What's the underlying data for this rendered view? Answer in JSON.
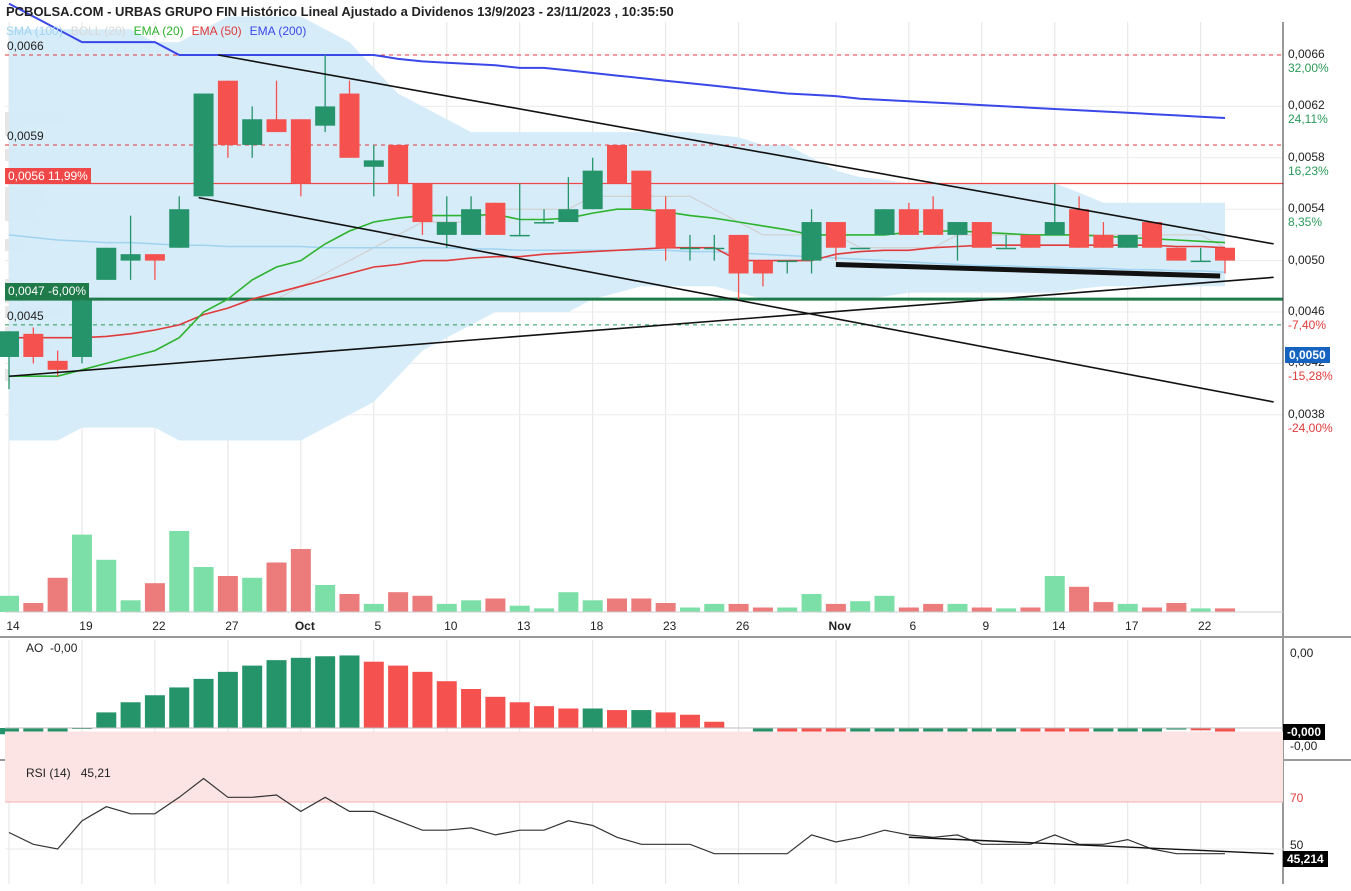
{
  "header": {
    "title": "PCBOLSA.COM - URBAS GRUPO FIN Histórico Lineal Ajustado a Dividenos 13/9/2023 - 23/11/2023 , 10:35:50"
  },
  "legend": [
    {
      "label": "SMA (100)",
      "color": "#9fd3f0"
    },
    {
      "label": "BOLL (20)",
      "color": "#d8d8d8"
    },
    {
      "label": "EMA (20)",
      "color": "#2db32d"
    },
    {
      "label": "EMA (50)",
      "color": "#e03a3a"
    },
    {
      "label": "EMA (200)",
      "color": "#3a48e8"
    }
  ],
  "colors": {
    "up": "#26946a",
    "down": "#f5524f",
    "up_vol": "#7ddfa8",
    "down_vol": "#ec7b7b",
    "band": "#d5ebf9"
  },
  "price_levels": [
    {
      "label": "0,0066",
      "value": 0.0066,
      "color": "#e03a3a",
      "style": "dashed"
    },
    {
      "label": "0,0059",
      "value": 0.0059,
      "color": "#e03a3a",
      "style": "dashed"
    },
    {
      "label": "0,0056",
      "pct": "11,99%",
      "value": 0.0056,
      "color": "#f04848",
      "style": "solid"
    },
    {
      "label": "0,0047",
      "pct": "-6,00%",
      "value": 0.0047,
      "color": "#1f7a4a",
      "style": "solid"
    },
    {
      "label": "0,0045",
      "value": 0.0045,
      "color": "#1f9a5a",
      "style": "dashed"
    }
  ],
  "y_axis": {
    "ticks": [
      "0,0066",
      "0,0062",
      "0,0058",
      "0,0054",
      "0,0050",
      "0,0046",
      "0,0042",
      "0,0038"
    ],
    "pct_labels": [
      {
        "text": "32,00%",
        "color": "#2a9a5a"
      },
      {
        "text": "24,11%",
        "color": "#2a9a5a"
      },
      {
        "text": "16,23%",
        "color": "#2a9a5a"
      },
      {
        "text": "8,35%",
        "color": "#2a9a5a"
      },
      {
        "text": "-7,40%",
        "color": "#e03a3a"
      },
      {
        "text": "-15,28%",
        "color": "#e03a3a"
      },
      {
        "text": "-24,00%",
        "color": "#e03a3a"
      }
    ]
  },
  "last_price": "0,0050",
  "x_axis": {
    "labels": [
      {
        "text": "14",
        "i": 0
      },
      {
        "text": "19",
        "i": 3
      },
      {
        "text": "22",
        "i": 6
      },
      {
        "text": "27",
        "i": 9
      },
      {
        "text": "Oct",
        "i": 12,
        "month": true
      },
      {
        "text": "5",
        "i": 15
      },
      {
        "text": "10",
        "i": 18
      },
      {
        "text": "13",
        "i": 21
      },
      {
        "text": "18",
        "i": 24
      },
      {
        "text": "23",
        "i": 27
      },
      {
        "text": "26",
        "i": 30
      },
      {
        "text": "Nov",
        "i": 34,
        "month": true
      },
      {
        "text": "6",
        "i": 37
      },
      {
        "text": "9",
        "i": 40
      },
      {
        "text": "14",
        "i": 43
      },
      {
        "text": "17",
        "i": 46
      },
      {
        "text": "22",
        "i": 49
      }
    ]
  },
  "ao": {
    "label": "AO",
    "value": "-0,00",
    "ticks": [
      "0,00",
      "-0,00"
    ],
    "badge": "-0,000"
  },
  "rsi": {
    "label": "RSI (14)",
    "value": "45,21",
    "ticks": [
      "70",
      "50"
    ],
    "badge": "45,214"
  },
  "chart_data": {
    "type": "candlestick",
    "period": "13/9/2023 - 23/11/2023",
    "candles": [
      {
        "o": 0.00425,
        "h": 0.00445,
        "l": 0.004,
        "c": 0.00445
      },
      {
        "o": 0.00443,
        "h": 0.00448,
        "l": 0.0042,
        "c": 0.00425
      },
      {
        "o": 0.00422,
        "h": 0.0043,
        "l": 0.0041,
        "c": 0.00415
      },
      {
        "o": 0.00425,
        "h": 0.0047,
        "l": 0.0042,
        "c": 0.00469
      },
      {
        "o": 0.00485,
        "h": 0.0051,
        "l": 0.00485,
        "c": 0.0051
      },
      {
        "o": 0.005,
        "h": 0.00535,
        "l": 0.00485,
        "c": 0.00505
      },
      {
        "o": 0.00505,
        "h": 0.00505,
        "l": 0.00485,
        "c": 0.005
      },
      {
        "o": 0.0051,
        "h": 0.0055,
        "l": 0.0051,
        "c": 0.0054
      },
      {
        "o": 0.0055,
        "h": 0.0063,
        "l": 0.0055,
        "c": 0.0063
      },
      {
        "o": 0.0064,
        "h": 0.0064,
        "l": 0.0058,
        "c": 0.0059
      },
      {
        "o": 0.0059,
        "h": 0.0062,
        "l": 0.0058,
        "c": 0.0061
      },
      {
        "o": 0.0061,
        "h": 0.0064,
        "l": 0.006,
        "c": 0.006
      },
      {
        "o": 0.0061,
        "h": 0.0061,
        "l": 0.0055,
        "c": 0.0056
      },
      {
        "o": 0.00605,
        "h": 0.0066,
        "l": 0.006,
        "c": 0.0062
      },
      {
        "o": 0.0063,
        "h": 0.0064,
        "l": 0.0058,
        "c": 0.0058
      },
      {
        "o": 0.00573,
        "h": 0.0059,
        "l": 0.0055,
        "c": 0.00578
      },
      {
        "o": 0.0059,
        "h": 0.0059,
        "l": 0.0055,
        "c": 0.0056
      },
      {
        "o": 0.0056,
        "h": 0.0056,
        "l": 0.0052,
        "c": 0.0053
      },
      {
        "o": 0.0052,
        "h": 0.0055,
        "l": 0.0051,
        "c": 0.0053
      },
      {
        "o": 0.0052,
        "h": 0.0055,
        "l": 0.0052,
        "c": 0.0054
      },
      {
        "o": 0.00545,
        "h": 0.00545,
        "l": 0.0052,
        "c": 0.0052
      },
      {
        "o": 0.0052,
        "h": 0.0056,
        "l": 0.0052,
        "c": 0.0052
      },
      {
        "o": 0.0053,
        "h": 0.0054,
        "l": 0.0053,
        "c": 0.0053
      },
      {
        "o": 0.0053,
        "h": 0.00565,
        "l": 0.0053,
        "c": 0.0054
      },
      {
        "o": 0.0054,
        "h": 0.0058,
        "l": 0.0054,
        "c": 0.0057
      },
      {
        "o": 0.0059,
        "h": 0.0059,
        "l": 0.0056,
        "c": 0.0056
      },
      {
        "o": 0.0057,
        "h": 0.0057,
        "l": 0.0054,
        "c": 0.0054
      },
      {
        "o": 0.0054,
        "h": 0.0055,
        "l": 0.005,
        "c": 0.0051
      },
      {
        "o": 0.0051,
        "h": 0.0052,
        "l": 0.005,
        "c": 0.0051
      },
      {
        "o": 0.0051,
        "h": 0.0052,
        "l": 0.005,
        "c": 0.0051
      },
      {
        "o": 0.0052,
        "h": 0.0052,
        "l": 0.0047,
        "c": 0.0049
      },
      {
        "o": 0.005,
        "h": 0.005,
        "l": 0.0048,
        "c": 0.0049
      },
      {
        "o": 0.005,
        "h": 0.005,
        "l": 0.0049,
        "c": 0.005
      },
      {
        "o": 0.005,
        "h": 0.0054,
        "l": 0.0049,
        "c": 0.0053
      },
      {
        "o": 0.0053,
        "h": 0.0053,
        "l": 0.005,
        "c": 0.0051
      },
      {
        "o": 0.0051,
        "h": 0.0051,
        "l": 0.0051,
        "c": 0.0051
      },
      {
        "o": 0.0052,
        "h": 0.0054,
        "l": 0.0052,
        "c": 0.0054
      },
      {
        "o": 0.0054,
        "h": 0.00545,
        "l": 0.0052,
        "c": 0.0052
      },
      {
        "o": 0.0054,
        "h": 0.0055,
        "l": 0.0052,
        "c": 0.0052
      },
      {
        "o": 0.0052,
        "h": 0.0053,
        "l": 0.005,
        "c": 0.0053
      },
      {
        "o": 0.0053,
        "h": 0.0053,
        "l": 0.0051,
        "c": 0.0051
      },
      {
        "o": 0.0051,
        "h": 0.0052,
        "l": 0.0051,
        "c": 0.0051
      },
      {
        "o": 0.0052,
        "h": 0.0052,
        "l": 0.0051,
        "c": 0.0051
      },
      {
        "o": 0.0052,
        "h": 0.0056,
        "l": 0.0052,
        "c": 0.0053
      },
      {
        "o": 0.0054,
        "h": 0.0055,
        "l": 0.0051,
        "c": 0.0051
      },
      {
        "o": 0.0052,
        "h": 0.0053,
        "l": 0.0051,
        "c": 0.0051
      },
      {
        "o": 0.0051,
        "h": 0.0052,
        "l": 0.0051,
        "c": 0.0052
      },
      {
        "o": 0.0053,
        "h": 0.0053,
        "l": 0.0051,
        "c": 0.0051
      },
      {
        "o": 0.0051,
        "h": 0.0051,
        "l": 0.005,
        "c": 0.005
      },
      {
        "o": 0.005,
        "h": 0.0051,
        "l": 0.005,
        "c": 0.005
      },
      {
        "o": 0.0051,
        "h": 0.0051,
        "l": 0.0049,
        "c": 0.005
      }
    ],
    "volume": [
      0.18,
      0.1,
      0.38,
      0.86,
      0.58,
      0.13,
      0.32,
      0.9,
      0.5,
      0.4,
      0.38,
      0.55,
      0.7,
      0.3,
      0.2,
      0.09,
      0.22,
      0.18,
      0.09,
      0.13,
      0.15,
      0.07,
      0.04,
      0.22,
      0.13,
      0.15,
      0.15,
      0.1,
      0.05,
      0.09,
      0.09,
      0.05,
      0.05,
      0.2,
      0.09,
      0.12,
      0.18,
      0.05,
      0.09,
      0.09,
      0.05,
      0.04,
      0.05,
      0.4,
      0.28,
      0.11,
      0.09,
      0.05,
      0.1,
      0.04,
      0.04
    ],
    "ema20": [
      0.0041,
      0.0041,
      0.0041,
      0.00415,
      0.0042,
      0.00425,
      0.0043,
      0.0044,
      0.0046,
      0.0047,
      0.00485,
      0.00495,
      0.005,
      0.00513,
      0.00523,
      0.0053,
      0.00533,
      0.00535,
      0.00535,
      0.00535,
      0.00536,
      0.00532,
      0.00532,
      0.00533,
      0.00537,
      0.0054,
      0.0054,
      0.00538,
      0.00535,
      0.00533,
      0.0053,
      0.00527,
      0.00524,
      0.0052,
      0.0052,
      0.0052,
      0.0052,
      0.00522,
      0.00523,
      0.00523,
      0.00522,
      0.00521,
      0.0052,
      0.0052,
      0.0052,
      0.00519,
      0.00518,
      0.00517,
      0.00516,
      0.00515,
      0.00514
    ],
    "ema50": [
      0.0044,
      0.0044,
      0.0044,
      0.0044,
      0.00441,
      0.00443,
      0.00446,
      0.0045,
      0.00458,
      0.00463,
      0.0047,
      0.00475,
      0.0048,
      0.00485,
      0.0049,
      0.00495,
      0.00497,
      0.005,
      0.005,
      0.00502,
      0.00503,
      0.00503,
      0.00505,
      0.00506,
      0.00507,
      0.00508,
      0.00509,
      0.0051,
      0.0051,
      0.0051,
      0.005,
      0.005,
      0.005,
      0.005,
      0.00505,
      0.00507,
      0.00508,
      0.00508,
      0.0051,
      0.00511,
      0.00512,
      0.00512,
      0.00512,
      0.00512,
      0.00512,
      0.00512,
      0.00512,
      0.00512,
      0.00511,
      0.00511,
      0.0051
    ],
    "ema200": [
      0.007,
      0.0069,
      0.0068,
      0.0067,
      0.0067,
      0.0067,
      0.0067,
      0.0066,
      0.0066,
      0.0066,
      0.0066,
      0.0066,
      0.0066,
      0.0066,
      0.0066,
      0.0066,
      0.00657,
      0.00655,
      0.00654,
      0.00653,
      0.00652,
      0.0065,
      0.0065,
      0.00648,
      0.00646,
      0.00644,
      0.00642,
      0.0064,
      0.00638,
      0.00636,
      0.00634,
      0.00632,
      0.0063,
      0.00629,
      0.00628,
      0.00626,
      0.00625,
      0.00624,
      0.00623,
      0.00622,
      0.00621,
      0.0062,
      0.00619,
      0.00618,
      0.00617,
      0.00616,
      0.00615,
      0.00614,
      0.00613,
      0.00612,
      0.00611
    ],
    "sma100": [
      0.0052,
      0.00518,
      0.00516,
      0.00515,
      0.00514,
      0.00514,
      0.00513,
      0.00512,
      0.00512,
      0.00511,
      0.00511,
      0.00511,
      0.00511,
      0.0051,
      0.0051,
      0.0051,
      0.0051,
      0.0051,
      0.0051,
      0.00509,
      0.00509,
      0.00508,
      0.00508,
      0.00508,
      0.00508,
      0.00508,
      0.00508,
      0.00508,
      0.00507,
      0.00507,
      0.00506,
      0.00505,
      0.00504,
      0.00503,
      0.00502,
      0.00501,
      0.005,
      0.00499,
      0.00498,
      0.00497,
      0.00496,
      0.00496,
      0.00495,
      0.00495,
      0.00494,
      0.00494,
      0.00493,
      0.00493,
      0.00492,
      0.00492,
      0.00491
    ],
    "boll_upper": [
      0.0068,
      0.0068,
      0.0068,
      0.0068,
      0.0068,
      0.0068,
      0.0067,
      0.0067,
      0.0068,
      0.0069,
      0.0069,
      0.0069,
      0.0069,
      0.0068,
      0.0067,
      0.0065,
      0.0063,
      0.0062,
      0.0061,
      0.006,
      0.006,
      0.006,
      0.006,
      0.006,
      0.006,
      0.006,
      0.006,
      0.006,
      0.006,
      0.00598,
      0.00596,
      0.0059,
      0.0059,
      0.0058,
      0.0057,
      0.00565,
      0.00563,
      0.0056,
      0.0056,
      0.0056,
      0.0056,
      0.0056,
      0.0056,
      0.0056,
      0.00553,
      0.00545,
      0.00545,
      0.00545,
      0.00545,
      0.00545,
      0.00545
    ],
    "boll_lower": [
      0.0036,
      0.0036,
      0.0036,
      0.0037,
      0.0037,
      0.0037,
      0.0037,
      0.0036,
      0.0036,
      0.0036,
      0.0036,
      0.0036,
      0.0036,
      0.0037,
      0.0038,
      0.0039,
      0.0041,
      0.0043,
      0.0044,
      0.0045,
      0.0046,
      0.0046,
      0.0046,
      0.0046,
      0.0047,
      0.00475,
      0.0048,
      0.0048,
      0.0048,
      0.0048,
      0.00475,
      0.0047,
      0.0047,
      0.0047,
      0.0047,
      0.0047,
      0.00472,
      0.00475,
      0.00475,
      0.00475,
      0.00475,
      0.00475,
      0.00475,
      0.00475,
      0.00478,
      0.0048,
      0.0048,
      0.0048,
      0.0048,
      0.0048,
      0.0048
    ],
    "boll_mid": [
      null,
      null,
      null,
      null,
      null,
      null,
      null,
      null,
      null,
      null,
      null,
      0.0047,
      0.0048,
      0.0049,
      0.005,
      0.0051,
      0.0052,
      0.0053,
      0.0053,
      0.0053,
      0.0054,
      0.0054,
      0.0054,
      0.0054,
      0.0055,
      0.0055,
      0.0055,
      0.0055,
      0.0055,
      0.0054,
      0.0053,
      0.0052,
      0.0052,
      0.0052,
      0.0052,
      0.0051,
      0.0051,
      0.0051,
      0.0051,
      0.0052,
      0.0052,
      0.0052,
      0.0052,
      0.0052,
      0.0052,
      0.0052,
      0.0052,
      0.0052,
      0.0052,
      0.0052,
      0.0051
    ],
    "ao": [
      -0.08,
      -0.08,
      -0.05,
      -0.01,
      0.2,
      0.33,
      0.42,
      0.52,
      0.63,
      0.72,
      0.8,
      0.87,
      0.9,
      0.92,
      0.93,
      0.85,
      0.8,
      0.72,
      0.6,
      0.5,
      0.4,
      0.33,
      0.28,
      0.25,
      0.25,
      0.23,
      0.23,
      0.2,
      0.17,
      0.08,
      null,
      -0.1,
      -0.15,
      -0.2,
      -0.22,
      -0.2,
      -0.15,
      -0.12,
      -0.1,
      -0.08,
      -0.08,
      -0.08,
      -0.1,
      -0.12,
      -0.13,
      -0.1,
      -0.08,
      -0.05,
      -0.02,
      -0.03,
      -0.06
    ],
    "rsi": [
      57,
      52,
      50,
      62,
      68,
      65,
      65,
      72,
      80,
      72,
      72,
      73,
      66,
      72,
      66,
      66,
      62,
      58,
      58,
      59,
      56,
      58,
      58,
      62,
      60,
      55,
      52,
      52,
      52,
      48,
      48,
      48,
      48,
      56,
      53,
      55,
      58,
      56,
      55,
      56,
      52,
      52,
      52,
      56,
      52,
      52,
      54,
      50,
      48,
      48,
      48
    ],
    "trendlines": [
      {
        "kind": "descending-upper",
        "p1": [
          8.6,
          0.0066
        ],
        "p2": [
          52,
          0.00513
        ]
      },
      {
        "kind": "descending-lower",
        "p1": [
          7.8,
          0.00549
        ],
        "p2": [
          52,
          0.0039
        ]
      },
      {
        "kind": "ascending-support",
        "p1": [
          0,
          0.0041
        ],
        "p2": [
          52,
          0.00487
        ]
      },
      {
        "kind": "bold-support",
        "p1": [
          34,
          0.00497
        ],
        "p2": [
          49.8,
          0.00488
        ]
      }
    ],
    "rsi_trendline": {
      "p1": [
        37,
        55
      ],
      "p2": [
        52,
        48
      ]
    }
  }
}
